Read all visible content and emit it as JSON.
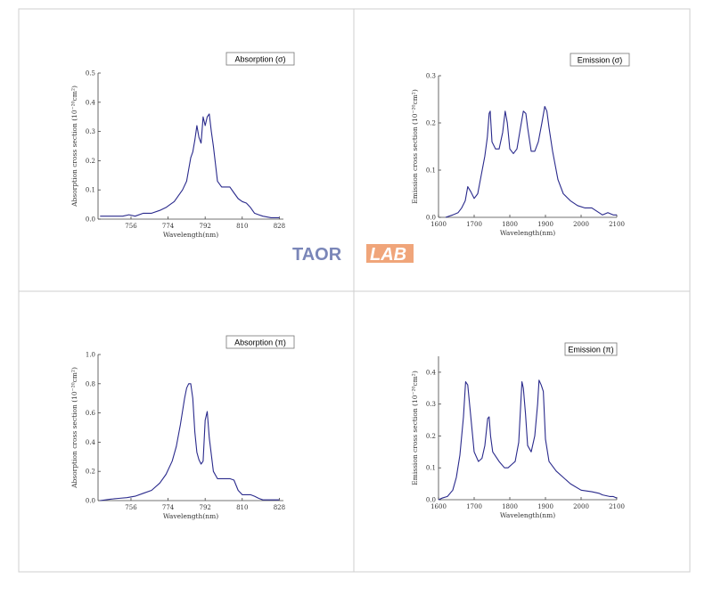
{
  "logo": {
    "text_main": "TAOR",
    "text_box": "LAB",
    "color_main": "#7a86b8",
    "color_box": "#f0a57a"
  },
  "line_color": "#2a2a8c",
  "chart_data": [
    {
      "type": "line",
      "annotation": "Absorption (σ)",
      "xlabel": "Wavelength(nm)",
      "ylabel": "Absorption cross section (10⁻²⁰cm²)",
      "xlim": [
        740,
        830
      ],
      "ylim": [
        0,
        0.5
      ],
      "xticks": [
        756,
        774,
        792,
        810,
        828
      ],
      "yticks": [
        0.0,
        0.1,
        0.2,
        0.3,
        0.4,
        0.5
      ],
      "ytick_labels": [
        "0.0",
        "0.1",
        "0.2",
        "0.3",
        "0.4",
        "0.5"
      ],
      "series": [
        {
          "x": [
            741,
            748,
            752,
            755,
            758,
            762,
            766,
            770,
            773,
            775,
            777,
            779,
            781,
            783,
            784,
            785,
            786,
            787,
            788,
            789,
            790,
            791,
            792,
            793,
            794,
            795,
            796,
            797,
            798,
            800,
            802,
            804,
            806,
            808,
            810,
            812,
            814,
            816,
            818,
            820,
            824,
            828
          ],
          "y": [
            0.01,
            0.01,
            0.01,
            0.015,
            0.01,
            0.02,
            0.02,
            0.03,
            0.04,
            0.05,
            0.06,
            0.08,
            0.1,
            0.13,
            0.17,
            0.21,
            0.23,
            0.27,
            0.32,
            0.28,
            0.26,
            0.35,
            0.32,
            0.35,
            0.36,
            0.3,
            0.25,
            0.19,
            0.13,
            0.11,
            0.11,
            0.11,
            0.09,
            0.07,
            0.06,
            0.055,
            0.04,
            0.02,
            0.015,
            0.01,
            0.005,
            0.005
          ]
        }
      ]
    },
    {
      "type": "line",
      "annotation": "Emission (σ)",
      "xlabel": "Wavelength(nm)",
      "ylabel": "Emission cross section (10⁻²⁰cm²)",
      "xlim": [
        1600,
        2100
      ],
      "ylim": [
        0,
        0.3
      ],
      "xticks": [
        1600,
        1700,
        1800,
        1900,
        2000,
        2100
      ],
      "yticks": [
        0.0,
        0.1,
        0.2,
        0.3
      ],
      "ytick_labels": [
        "0.0",
        "0.1",
        "0.2",
        "0.3"
      ],
      "series": [
        {
          "x": [
            1620,
            1640,
            1655,
            1665,
            1675,
            1682,
            1690,
            1700,
            1710,
            1720,
            1730,
            1737,
            1742,
            1745,
            1750,
            1760,
            1770,
            1780,
            1787,
            1793,
            1800,
            1810,
            1820,
            1830,
            1838,
            1845,
            1850,
            1860,
            1870,
            1880,
            1890,
            1898,
            1904,
            1910,
            1920,
            1935,
            1950,
            1970,
            1990,
            2010,
            2030,
            2040,
            2050,
            2060,
            2075,
            2090,
            2100
          ],
          "y": [
            0.0,
            0.005,
            0.01,
            0.02,
            0.035,
            0.065,
            0.055,
            0.04,
            0.05,
            0.09,
            0.13,
            0.17,
            0.22,
            0.225,
            0.16,
            0.145,
            0.145,
            0.18,
            0.225,
            0.2,
            0.145,
            0.135,
            0.145,
            0.19,
            0.225,
            0.22,
            0.19,
            0.14,
            0.14,
            0.16,
            0.2,
            0.235,
            0.225,
            0.19,
            0.14,
            0.08,
            0.05,
            0.035,
            0.025,
            0.02,
            0.02,
            0.015,
            0.01,
            0.005,
            0.01,
            0.005,
            0.005
          ]
        }
      ]
    },
    {
      "type": "line",
      "annotation": "Absorption (π)",
      "xlabel": "Wavelength(nm)",
      "ylabel": "Absorption cross section (10⁻²⁰cm²)",
      "xlim": [
        740,
        830
      ],
      "ylim": [
        0,
        1.0
      ],
      "xticks": [
        756,
        774,
        792,
        810,
        828
      ],
      "yticks": [
        0.0,
        0.2,
        0.4,
        0.6,
        0.8,
        1.0
      ],
      "ytick_labels": [
        "0.0",
        "0.2",
        "0.4",
        "0.6",
        "0.8",
        "1.0"
      ],
      "series": [
        {
          "x": [
            741,
            746,
            750,
            754,
            758,
            762,
            766,
            770,
            773,
            776,
            778,
            780,
            782,
            783,
            784,
            785,
            786,
            787,
            788,
            789,
            790,
            791,
            792,
            793,
            794,
            796,
            798,
            800,
            802,
            804,
            806,
            808,
            810,
            812,
            814,
            816,
            818,
            820,
            824,
            828
          ],
          "y": [
            0.0,
            0.01,
            0.015,
            0.02,
            0.03,
            0.05,
            0.07,
            0.12,
            0.18,
            0.27,
            0.37,
            0.52,
            0.7,
            0.77,
            0.8,
            0.8,
            0.7,
            0.47,
            0.33,
            0.28,
            0.25,
            0.27,
            0.55,
            0.61,
            0.43,
            0.2,
            0.15,
            0.15,
            0.15,
            0.15,
            0.14,
            0.07,
            0.04,
            0.04,
            0.04,
            0.03,
            0.015,
            0.005,
            0.005,
            0.005
          ]
        }
      ]
    },
    {
      "type": "line",
      "annotation": "Emission (π)",
      "xlabel": "Wavelength(nm)",
      "ylabel": "Emission cross section (10⁻²⁰cm²)",
      "xlim": [
        1600,
        2100
      ],
      "ylim": [
        0,
        0.45
      ],
      "xticks": [
        1600,
        1700,
        1800,
        1900,
        2000,
        2100
      ],
      "yticks": [
        0.0,
        0.1,
        0.2,
        0.3,
        0.4
      ],
      "ytick_labels": [
        "0.0",
        "0.1",
        "0.2",
        "0.3",
        "0.4"
      ],
      "series": [
        {
          "x": [
            1600,
            1610,
            1625,
            1640,
            1650,
            1660,
            1670,
            1676,
            1682,
            1688,
            1700,
            1712,
            1722,
            1730,
            1738,
            1742,
            1746,
            1752,
            1770,
            1785,
            1795,
            1805,
            1815,
            1825,
            1834,
            1838,
            1844,
            1850,
            1860,
            1870,
            1878,
            1882,
            1888,
            1894,
            1900,
            1910,
            1930,
            1950,
            1970,
            2000,
            2030,
            2050,
            2060,
            2080,
            2090,
            2100
          ],
          "y": [
            0.0,
            0.005,
            0.01,
            0.03,
            0.07,
            0.14,
            0.26,
            0.37,
            0.36,
            0.29,
            0.15,
            0.12,
            0.13,
            0.17,
            0.255,
            0.26,
            0.2,
            0.15,
            0.12,
            0.1,
            0.1,
            0.11,
            0.12,
            0.18,
            0.37,
            0.35,
            0.27,
            0.17,
            0.15,
            0.2,
            0.3,
            0.375,
            0.36,
            0.34,
            0.19,
            0.12,
            0.09,
            0.07,
            0.05,
            0.03,
            0.025,
            0.02,
            0.015,
            0.01,
            0.01,
            0.005
          ]
        }
      ]
    }
  ]
}
